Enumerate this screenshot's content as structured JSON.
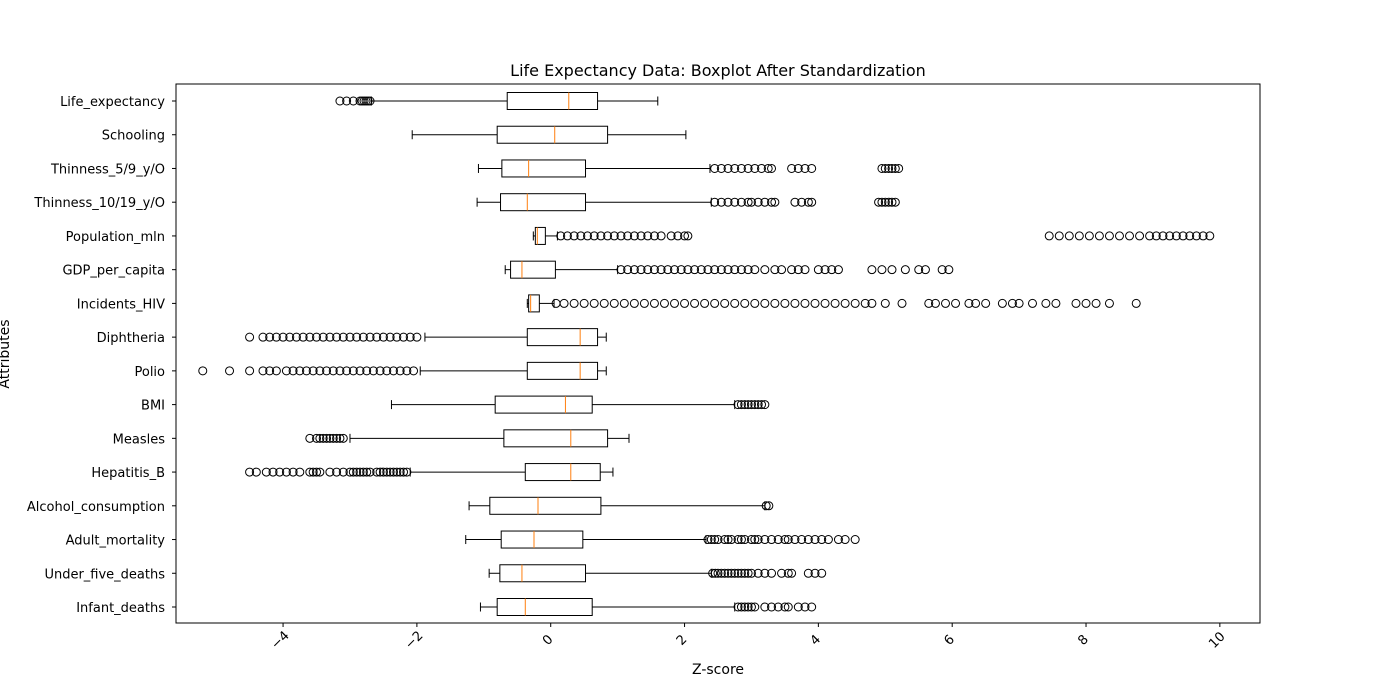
{
  "chart_data": {
    "type": "boxplot",
    "orientation": "horizontal",
    "title": "Life Expectancy Data: Boxplot After Standardization",
    "xlabel": "Z-score",
    "ylabel": "Attributes",
    "xlim": [
      -5.6,
      10.6
    ],
    "xticks": [
      -4,
      -2,
      0,
      2,
      4,
      6,
      8,
      10
    ],
    "xtick_labels": [
      "−4",
      "−2",
      "0",
      "2",
      "4",
      "6",
      "8",
      "10"
    ],
    "grid": false,
    "legend": "none",
    "colors": {
      "box": "#000000",
      "median": "#ff7f0e",
      "background": "#ffffff"
    },
    "series": [
      {
        "label": "Infant_deaths",
        "whisker_low": -1.05,
        "q1": -0.8,
        "median": -0.38,
        "q3": 0.62,
        "whisker_high": 2.75,
        "outliers": [
          2.8,
          2.85,
          2.9,
          2.95,
          3.0,
          3.05,
          3.2,
          3.3,
          3.4,
          3.5,
          3.55,
          3.7,
          3.8,
          3.9
        ]
      },
      {
        "label": "Under_five_deaths",
        "whisker_low": -0.92,
        "q1": -0.76,
        "median": -0.43,
        "q3": 0.52,
        "whisker_high": 2.4,
        "outliers": [
          2.42,
          2.46,
          2.5,
          2.55,
          2.6,
          2.65,
          2.7,
          2.75,
          2.8,
          2.85,
          2.9,
          2.95,
          3.0,
          3.1,
          3.2,
          3.3,
          3.45,
          3.55,
          3.6,
          3.85,
          3.95,
          4.05
        ]
      },
      {
        "label": "Adult_mortality",
        "whisker_low": -1.27,
        "q1": -0.74,
        "median": -0.25,
        "q3": 0.48,
        "whisker_high": 2.32,
        "outliers": [
          2.35,
          2.4,
          2.45,
          2.5,
          2.6,
          2.65,
          2.7,
          2.8,
          2.85,
          2.9,
          3.0,
          3.05,
          3.1,
          3.2,
          3.3,
          3.4,
          3.5,
          3.55,
          3.65,
          3.75,
          3.85,
          3.95,
          4.05,
          4.15,
          4.3,
          4.4,
          4.55
        ]
      },
      {
        "label": "Alcohol_consumption",
        "whisker_low": -1.22,
        "q1": -0.91,
        "median": -0.19,
        "q3": 0.75,
        "whisker_high": 3.2,
        "outliers": [
          3.22,
          3.26
        ]
      },
      {
        "label": "Hepatitis_B",
        "whisker_low": -2.1,
        "q1": -0.38,
        "median": 0.3,
        "q3": 0.74,
        "whisker_high": 0.93,
        "outliers": [
          -4.5,
          -4.4,
          -4.25,
          -4.15,
          -4.05,
          -3.95,
          -3.85,
          -3.75,
          -3.6,
          -3.55,
          -3.5,
          -3.45,
          -3.3,
          -3.2,
          -3.1,
          -3.0,
          -2.95,
          -2.9,
          -2.85,
          -2.8,
          -2.75,
          -2.7,
          -2.6,
          -2.55,
          -2.5,
          -2.45,
          -2.4,
          -2.35,
          -2.3,
          -2.25,
          -2.2,
          -2.15
        ]
      },
      {
        "label": "Measles",
        "whisker_low": -3.0,
        "q1": -0.7,
        "median": 0.3,
        "q3": 0.85,
        "whisker_high": 1.17,
        "outliers": [
          -3.6,
          -3.5,
          -3.45,
          -3.4,
          -3.35,
          -3.3,
          -3.25,
          -3.2,
          -3.15,
          -3.1
        ]
      },
      {
        "label": "BMI",
        "whisker_low": -2.38,
        "q1": -0.83,
        "median": 0.22,
        "q3": 0.62,
        "whisker_high": 2.75,
        "outliers": [
          2.8,
          2.85,
          2.9,
          2.95,
          3.0,
          3.05,
          3.1,
          3.15,
          3.2
        ]
      },
      {
        "label": "Polio",
        "whisker_low": -1.95,
        "q1": -0.35,
        "median": 0.44,
        "q3": 0.7,
        "whisker_high": 0.83,
        "outliers": [
          -5.2,
          -4.8,
          -4.5,
          -4.3,
          -4.2,
          -4.1,
          -3.95,
          -3.85,
          -3.75,
          -3.65,
          -3.55,
          -3.45,
          -3.35,
          -3.25,
          -3.15,
          -3.05,
          -2.95,
          -2.85,
          -2.75,
          -2.65,
          -2.55,
          -2.45,
          -2.35,
          -2.25,
          -2.15,
          -2.05
        ]
      },
      {
        "label": "Diphtheria",
        "whisker_low": -1.88,
        "q1": -0.35,
        "median": 0.44,
        "q3": 0.7,
        "whisker_high": 0.83,
        "outliers": [
          -4.5,
          -4.3,
          -4.2,
          -4.1,
          -4.0,
          -3.9,
          -3.8,
          -3.7,
          -3.6,
          -3.5,
          -3.4,
          -3.3,
          -3.2,
          -3.1,
          -3.0,
          -2.9,
          -2.8,
          -2.7,
          -2.6,
          -2.5,
          -2.4,
          -2.3,
          -2.2,
          -2.1,
          -2.0
        ]
      },
      {
        "label": "Incidents_HIV",
        "whisker_low": -0.35,
        "q1": -0.33,
        "median": -0.3,
        "q3": -0.17,
        "whisker_high": 0.05,
        "outliers": [
          0.08,
          0.2,
          0.35,
          0.5,
          0.65,
          0.8,
          0.95,
          1.1,
          1.25,
          1.4,
          1.55,
          1.7,
          1.85,
          2.0,
          2.15,
          2.3,
          2.45,
          2.6,
          2.75,
          2.9,
          3.05,
          3.2,
          3.35,
          3.5,
          3.65,
          3.8,
          3.95,
          4.1,
          4.25,
          4.4,
          4.55,
          4.7,
          4.8,
          5.0,
          5.25,
          5.65,
          5.75,
          5.9,
          6.05,
          6.25,
          6.35,
          6.5,
          6.75,
          6.9,
          7.0,
          7.2,
          7.4,
          7.55,
          7.85,
          8.0,
          8.15,
          8.35,
          8.75
        ]
      },
      {
        "label": "GDP_per_capita",
        "whisker_low": -0.68,
        "q1": -0.6,
        "median": -0.43,
        "q3": 0.07,
        "whisker_high": 1.0,
        "outliers": [
          1.05,
          1.15,
          1.25,
          1.35,
          1.45,
          1.55,
          1.65,
          1.75,
          1.85,
          1.95,
          2.05,
          2.15,
          2.25,
          2.35,
          2.45,
          2.55,
          2.65,
          2.75,
          2.85,
          2.95,
          3.05,
          3.2,
          3.35,
          3.45,
          3.6,
          3.7,
          3.8,
          4.0,
          4.1,
          4.2,
          4.3,
          4.8,
          4.95,
          5.1,
          5.3,
          5.5,
          5.6,
          5.85,
          5.95
        ]
      },
      {
        "label": "Population_mln",
        "whisker_low": -0.26,
        "q1": -0.23,
        "median": -0.2,
        "q3": -0.08,
        "whisker_high": 0.1,
        "outliers": [
          0.15,
          0.25,
          0.35,
          0.45,
          0.55,
          0.65,
          0.75,
          0.85,
          0.95,
          1.05,
          1.15,
          1.25,
          1.35,
          1.45,
          1.55,
          1.65,
          1.8,
          1.9,
          2.0,
          2.05,
          7.45,
          7.6,
          7.75,
          7.9,
          8.05,
          8.2,
          8.35,
          8.5,
          8.65,
          8.8,
          8.95,
          9.05,
          9.15,
          9.25,
          9.35,
          9.45,
          9.55,
          9.65,
          9.75,
          9.85
        ]
      },
      {
        "label": "Thinness_10/19_y/O",
        "whisker_low": -1.1,
        "q1": -0.75,
        "median": -0.35,
        "q3": 0.52,
        "whisker_high": 2.4,
        "outliers": [
          2.45,
          2.55,
          2.65,
          2.75,
          2.85,
          2.95,
          3.0,
          3.1,
          3.2,
          3.3,
          3.35,
          3.65,
          3.75,
          3.85,
          3.9,
          4.9,
          4.95,
          5.0,
          5.05,
          5.1,
          5.15
        ]
      },
      {
        "label": "Thinness_5/9_y/O",
        "whisker_low": -1.08,
        "q1": -0.73,
        "median": -0.33,
        "q3": 0.52,
        "whisker_high": 2.38,
        "outliers": [
          2.45,
          2.55,
          2.65,
          2.75,
          2.85,
          2.95,
          3.05,
          3.15,
          3.25,
          3.3,
          3.6,
          3.7,
          3.8,
          3.9,
          4.95,
          5.0,
          5.05,
          5.1,
          5.15,
          5.2
        ]
      },
      {
        "label": "Schooling",
        "whisker_low": -2.07,
        "q1": -0.8,
        "median": 0.06,
        "q3": 0.85,
        "whisker_high": 2.02,
        "outliers": []
      },
      {
        "label": "Life_expectancy",
        "whisker_low": -2.68,
        "q1": -0.65,
        "median": 0.27,
        "q3": 0.7,
        "whisker_high": 1.6,
        "outliers": [
          -3.15,
          -3.05,
          -2.95,
          -2.85,
          -2.82,
          -2.79,
          -2.76,
          -2.73,
          -2.7
        ]
      }
    ]
  }
}
